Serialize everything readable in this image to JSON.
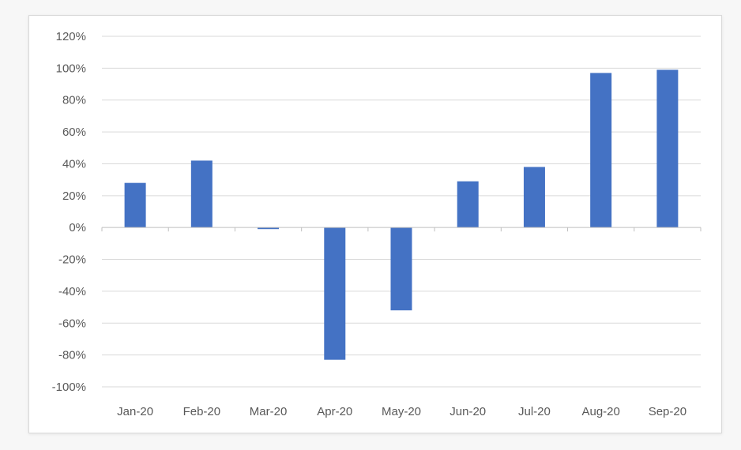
{
  "chart_data": {
    "type": "bar",
    "categories": [
      "Jan-20",
      "Feb-20",
      "Mar-20",
      "Apr-20",
      "May-20",
      "Jun-20",
      "Jul-20",
      "Aug-20",
      "Sep-20"
    ],
    "values": [
      28,
      42,
      -1,
      -83,
      -52,
      29,
      38,
      97,
      99
    ],
    "y_ticks": [
      "120%",
      "100%",
      "80%",
      "60%",
      "40%",
      "20%",
      "0%",
      "-20%",
      "-40%",
      "-60%",
      "-80%",
      "-100%"
    ],
    "ylim": [
      -100,
      120
    ],
    "y_tick_step": 20,
    "grid": true,
    "bar_color": "#4472c4",
    "grid_color": "#d9d9d9",
    "axis_color": "#bfbfbf",
    "text_color": "#595959"
  }
}
